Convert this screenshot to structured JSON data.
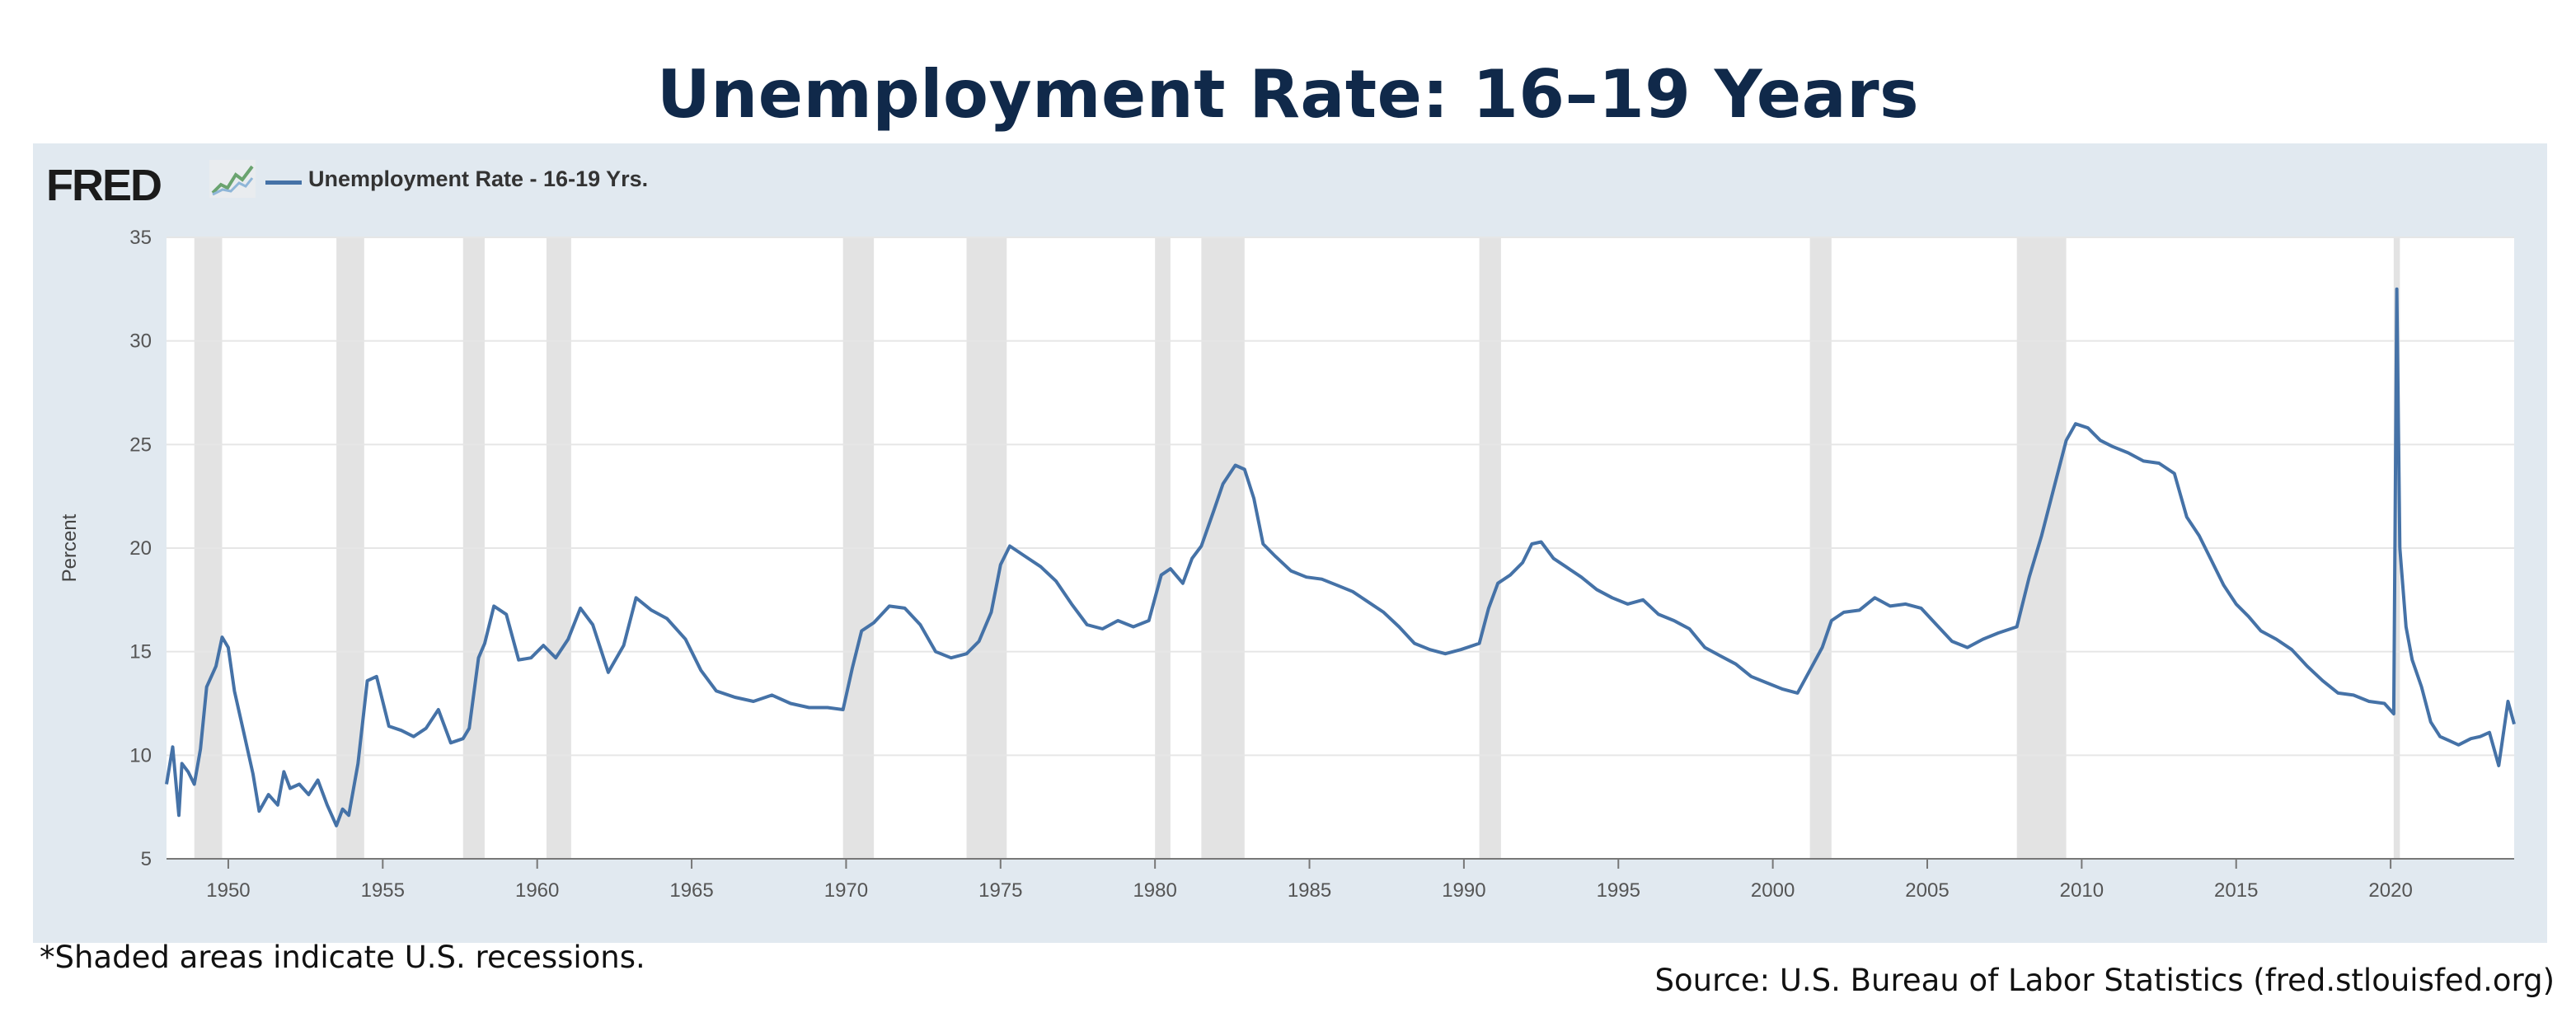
{
  "title": "Unemployment Rate: 16–19 Years",
  "logo": {
    "text": "FRED",
    "icon": "fred-chart-icon"
  },
  "legend": {
    "label": "Unemployment Rate - 16-19 Yrs.",
    "color": "#4572a7"
  },
  "footnote": "*Shaded areas indicate U.S. recessions.",
  "source": "Source: U.S. Bureau of Labor Statistics (fred.stlouisfed.org)",
  "colors": {
    "panel_bg": "#e1e9f0",
    "plot_bg": "#ffffff",
    "grid": "#e6e6e6",
    "recession": "#e3e3e3",
    "line": "#4572a7",
    "title": "#10294a"
  },
  "chart_data": {
    "type": "line",
    "title": "",
    "xlabel": "",
    "ylabel": "Percent",
    "xlim": [
      1948.0,
      2024.0
    ],
    "ylim": [
      5,
      35
    ],
    "x_ticks": [
      1950,
      1955,
      1960,
      1965,
      1970,
      1975,
      1980,
      1985,
      1990,
      1995,
      2000,
      2005,
      2010,
      2015,
      2020
    ],
    "y_ticks": [
      5,
      10,
      15,
      20,
      25,
      30,
      35
    ],
    "grid": true,
    "legend_position": "top-left",
    "recessions": [
      [
        1948.9,
        1949.8
      ],
      [
        1953.5,
        1954.4
      ],
      [
        1957.6,
        1958.3
      ],
      [
        1960.3,
        1961.1
      ],
      [
        1969.9,
        1970.9
      ],
      [
        1973.9,
        1975.2
      ],
      [
        1980.0,
        1980.5
      ],
      [
        1981.5,
        1982.9
      ],
      [
        1990.5,
        1991.2
      ],
      [
        2001.2,
        2001.9
      ],
      [
        2007.9,
        2009.5
      ],
      [
        2020.1,
        2020.3
      ]
    ],
    "series": [
      {
        "name": "Unemployment Rate - 16-19 Yrs.",
        "x": [
          1948.0,
          1948.2,
          1948.4,
          1948.5,
          1948.7,
          1948.9,
          1949.1,
          1949.3,
          1949.6,
          1949.8,
          1950.0,
          1950.2,
          1950.5,
          1950.8,
          1951.0,
          1951.3,
          1951.6,
          1951.8,
          1952.0,
          1952.3,
          1952.6,
          1952.9,
          1953.2,
          1953.5,
          1953.7,
          1953.9,
          1954.2,
          1954.5,
          1954.8,
          1955.2,
          1955.6,
          1956.0,
          1956.4,
          1956.8,
          1957.2,
          1957.6,
          1957.8,
          1958.1,
          1958.3,
          1958.6,
          1959.0,
          1959.4,
          1959.8,
          1960.2,
          1960.6,
          1961.0,
          1961.4,
          1961.8,
          1962.3,
          1962.8,
          1963.2,
          1963.7,
          1964.2,
          1964.8,
          1965.3,
          1965.8,
          1966.4,
          1967.0,
          1967.6,
          1968.2,
          1968.8,
          1969.4,
          1969.9,
          1970.2,
          1970.5,
          1970.9,
          1971.4,
          1971.9,
          1972.4,
          1972.9,
          1973.4,
          1973.9,
          1974.3,
          1974.7,
          1975.0,
          1975.3,
          1975.8,
          1976.3,
          1976.8,
          1977.3,
          1977.8,
          1978.3,
          1978.8,
          1979.3,
          1979.8,
          1980.2,
          1980.5,
          1980.9,
          1981.2,
          1981.5,
          1981.9,
          1982.2,
          1982.6,
          1982.9,
          1983.2,
          1983.5,
          1983.9,
          1984.4,
          1984.9,
          1985.4,
          1985.9,
          1986.4,
          1986.9,
          1987.4,
          1987.9,
          1988.4,
          1988.9,
          1989.4,
          1989.9,
          1990.5,
          1990.8,
          1991.1,
          1991.5,
          1991.9,
          1992.2,
          1992.5,
          1992.9,
          1993.3,
          1993.8,
          1994.3,
          1994.8,
          1995.3,
          1995.8,
          1996.3,
          1996.8,
          1997.3,
          1997.8,
          1998.3,
          1998.8,
          1999.3,
          1999.8,
          2000.3,
          2000.8,
          2001.2,
          2001.6,
          2001.9,
          2002.3,
          2002.8,
          2003.3,
          2003.8,
          2004.3,
          2004.8,
          2005.3,
          2005.8,
          2006.3,
          2006.8,
          2007.3,
          2007.9,
          2008.3,
          2008.7,
          2009.1,
          2009.5,
          2009.8,
          2010.2,
          2010.6,
          2011.0,
          2011.5,
          2012.0,
          2012.5,
          2013.0,
          2013.4,
          2013.8,
          2014.2,
          2014.6,
          2015.0,
          2015.4,
          2015.8,
          2016.3,
          2016.8,
          2017.3,
          2017.8,
          2018.3,
          2018.8,
          2019.3,
          2019.8,
          2020.1,
          2020.2,
          2020.3,
          2020.5,
          2020.7,
          2021.0,
          2021.3,
          2021.6,
          2021.9,
          2022.2,
          2022.6,
          2022.9,
          2023.2,
          2023.5,
          2023.8,
          2024.0
        ],
        "values": [
          8.6,
          10.4,
          7.1,
          9.6,
          9.2,
          8.6,
          10.3,
          13.3,
          14.3,
          15.7,
          15.2,
          13.1,
          11.1,
          9.1,
          7.3,
          8.1,
          7.6,
          9.2,
          8.4,
          8.6,
          8.1,
          8.8,
          7.6,
          6.6,
          7.4,
          7.1,
          9.6,
          13.6,
          13.8,
          11.4,
          11.2,
          10.9,
          11.3,
          12.2,
          10.6,
          10.8,
          11.3,
          14.7,
          15.4,
          17.2,
          16.8,
          14.6,
          14.7,
          15.3,
          14.7,
          15.6,
          17.1,
          16.3,
          14.0,
          15.3,
          17.6,
          17.0,
          16.6,
          15.6,
          14.1,
          13.1,
          12.8,
          12.6,
          12.9,
          12.5,
          12.3,
          12.3,
          12.2,
          14.2,
          16.0,
          16.4,
          17.2,
          17.1,
          16.3,
          15.0,
          14.7,
          14.9,
          15.5,
          16.9,
          19.2,
          20.1,
          19.6,
          19.1,
          18.4,
          17.3,
          16.3,
          16.1,
          16.5,
          16.2,
          16.5,
          18.7,
          19.0,
          18.3,
          19.5,
          20.1,
          21.8,
          23.1,
          24.0,
          23.8,
          22.4,
          20.2,
          19.6,
          18.9,
          18.6,
          18.5,
          18.2,
          17.9,
          17.4,
          16.9,
          16.2,
          15.4,
          15.1,
          14.9,
          15.1,
          15.4,
          17.1,
          18.3,
          18.7,
          19.3,
          20.2,
          20.3,
          19.5,
          19.1,
          18.6,
          18.0,
          17.6,
          17.3,
          17.5,
          16.8,
          16.5,
          16.1,
          15.2,
          14.8,
          14.4,
          13.8,
          13.5,
          13.2,
          13.0,
          14.1,
          15.2,
          16.5,
          16.9,
          17.0,
          17.6,
          17.2,
          17.3,
          17.1,
          16.3,
          15.5,
          15.2,
          15.6,
          15.9,
          16.2,
          18.6,
          20.6,
          22.9,
          25.2,
          26.0,
          25.8,
          25.2,
          24.9,
          24.6,
          24.2,
          24.1,
          23.6,
          21.5,
          20.6,
          19.4,
          18.2,
          17.3,
          16.7,
          16.0,
          15.6,
          15.1,
          14.3,
          13.6,
          13.0,
          12.9,
          12.6,
          12.5,
          12.0,
          32.5,
          20.0,
          16.2,
          14.6,
          13.3,
          11.6,
          10.9,
          10.7,
          10.5,
          10.8,
          10.9,
          11.1,
          9.5,
          12.6,
          11.5
        ]
      }
    ]
  }
}
